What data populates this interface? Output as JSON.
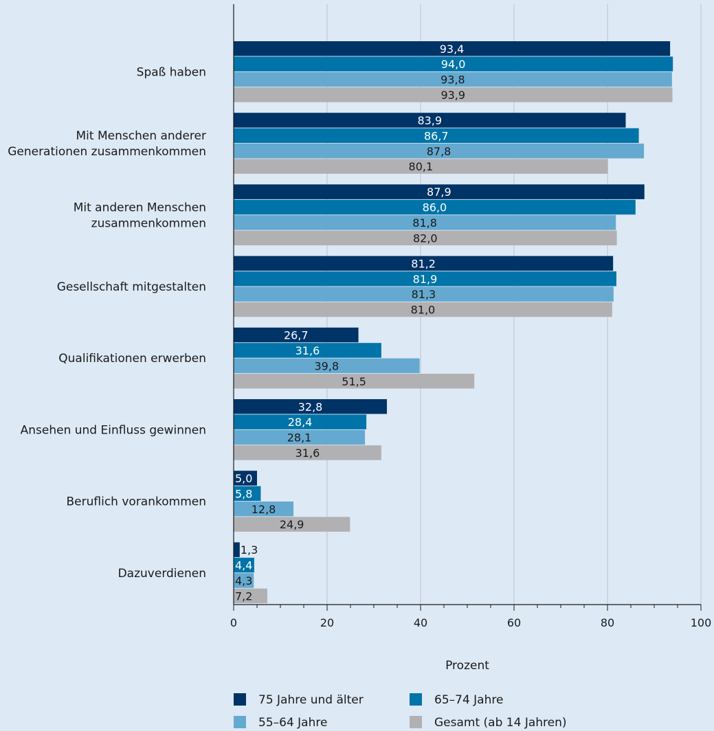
{
  "chart_data": {
    "type": "bar",
    "orientation": "horizontal",
    "title": "",
    "xlabel": "Prozent",
    "ylabel": "",
    "xlim": [
      0,
      100
    ],
    "xticks": [
      "0",
      "20",
      "40",
      "60",
      "80",
      "100"
    ],
    "grid": true,
    "legend_position": "bottom",
    "categories": [
      "Spaß haben",
      "Mit Menschen anderer Generationen zusammenkommen",
      "Mit anderen Menschen zusammenkommen",
      "Gesellschaft mitgestalten",
      "Qualifikationen erwerben",
      "Ansehen und Einfluss gewinnen",
      "Beruflich vorankommen",
      "Dazuverdienen"
    ],
    "category_lines": [
      [
        "Spaß haben"
      ],
      [
        "Mit Menschen anderer",
        "Generationen zusammenkommen"
      ],
      [
        "Mit anderen Menschen",
        "zusammenkommen"
      ],
      [
        "Gesellschaft mitgestalten"
      ],
      [
        "Qualifikationen erwerben"
      ],
      [
        "Ansehen und Einfluss gewinnen"
      ],
      [
        "Beruflich vorankommen"
      ],
      [
        "Dazuverdienen"
      ]
    ],
    "series": [
      {
        "name": "75 Jahre und älter",
        "color": "#003366",
        "label_color": "#ffffff",
        "values": [
          93.4,
          83.9,
          87.9,
          81.2,
          26.7,
          32.8,
          5.0,
          1.3
        ],
        "labels": [
          "93,4",
          "83,9",
          "87,9",
          "81,2",
          "26,7",
          "32,8",
          "5,0",
          "1,3"
        ]
      },
      {
        "name": "65–74 Jahre",
        "color": "#0074a8",
        "label_color": "#ffffff",
        "values": [
          94.0,
          86.7,
          86.0,
          81.9,
          31.6,
          28.4,
          5.8,
          4.4
        ],
        "labels": [
          "94,0",
          "86,7",
          "86,0",
          "81,9",
          "31,6",
          "28,4",
          "5,8",
          "4,4"
        ]
      },
      {
        "name": "55–64 Jahre",
        "color": "#65a9d0",
        "label_color": "#1a1a1a",
        "values": [
          93.8,
          87.8,
          81.8,
          81.3,
          39.8,
          28.1,
          12.8,
          4.3
        ],
        "labels": [
          "93,8",
          "87,8",
          "81,8",
          "81,3",
          "39,8",
          "28,1",
          "12,8",
          "4,3"
        ]
      },
      {
        "name": "Gesamt (ab 14 Jahren)",
        "color": "#b1b1b3",
        "label_color": "#1a1a1a",
        "values": [
          93.9,
          80.1,
          82.0,
          81.0,
          51.5,
          31.6,
          24.9,
          7.2
        ],
        "labels": [
          "93,9",
          "80,1",
          "82,0",
          "81,0",
          "51,5",
          "31,6",
          "24,9",
          "7,2"
        ]
      }
    ]
  }
}
